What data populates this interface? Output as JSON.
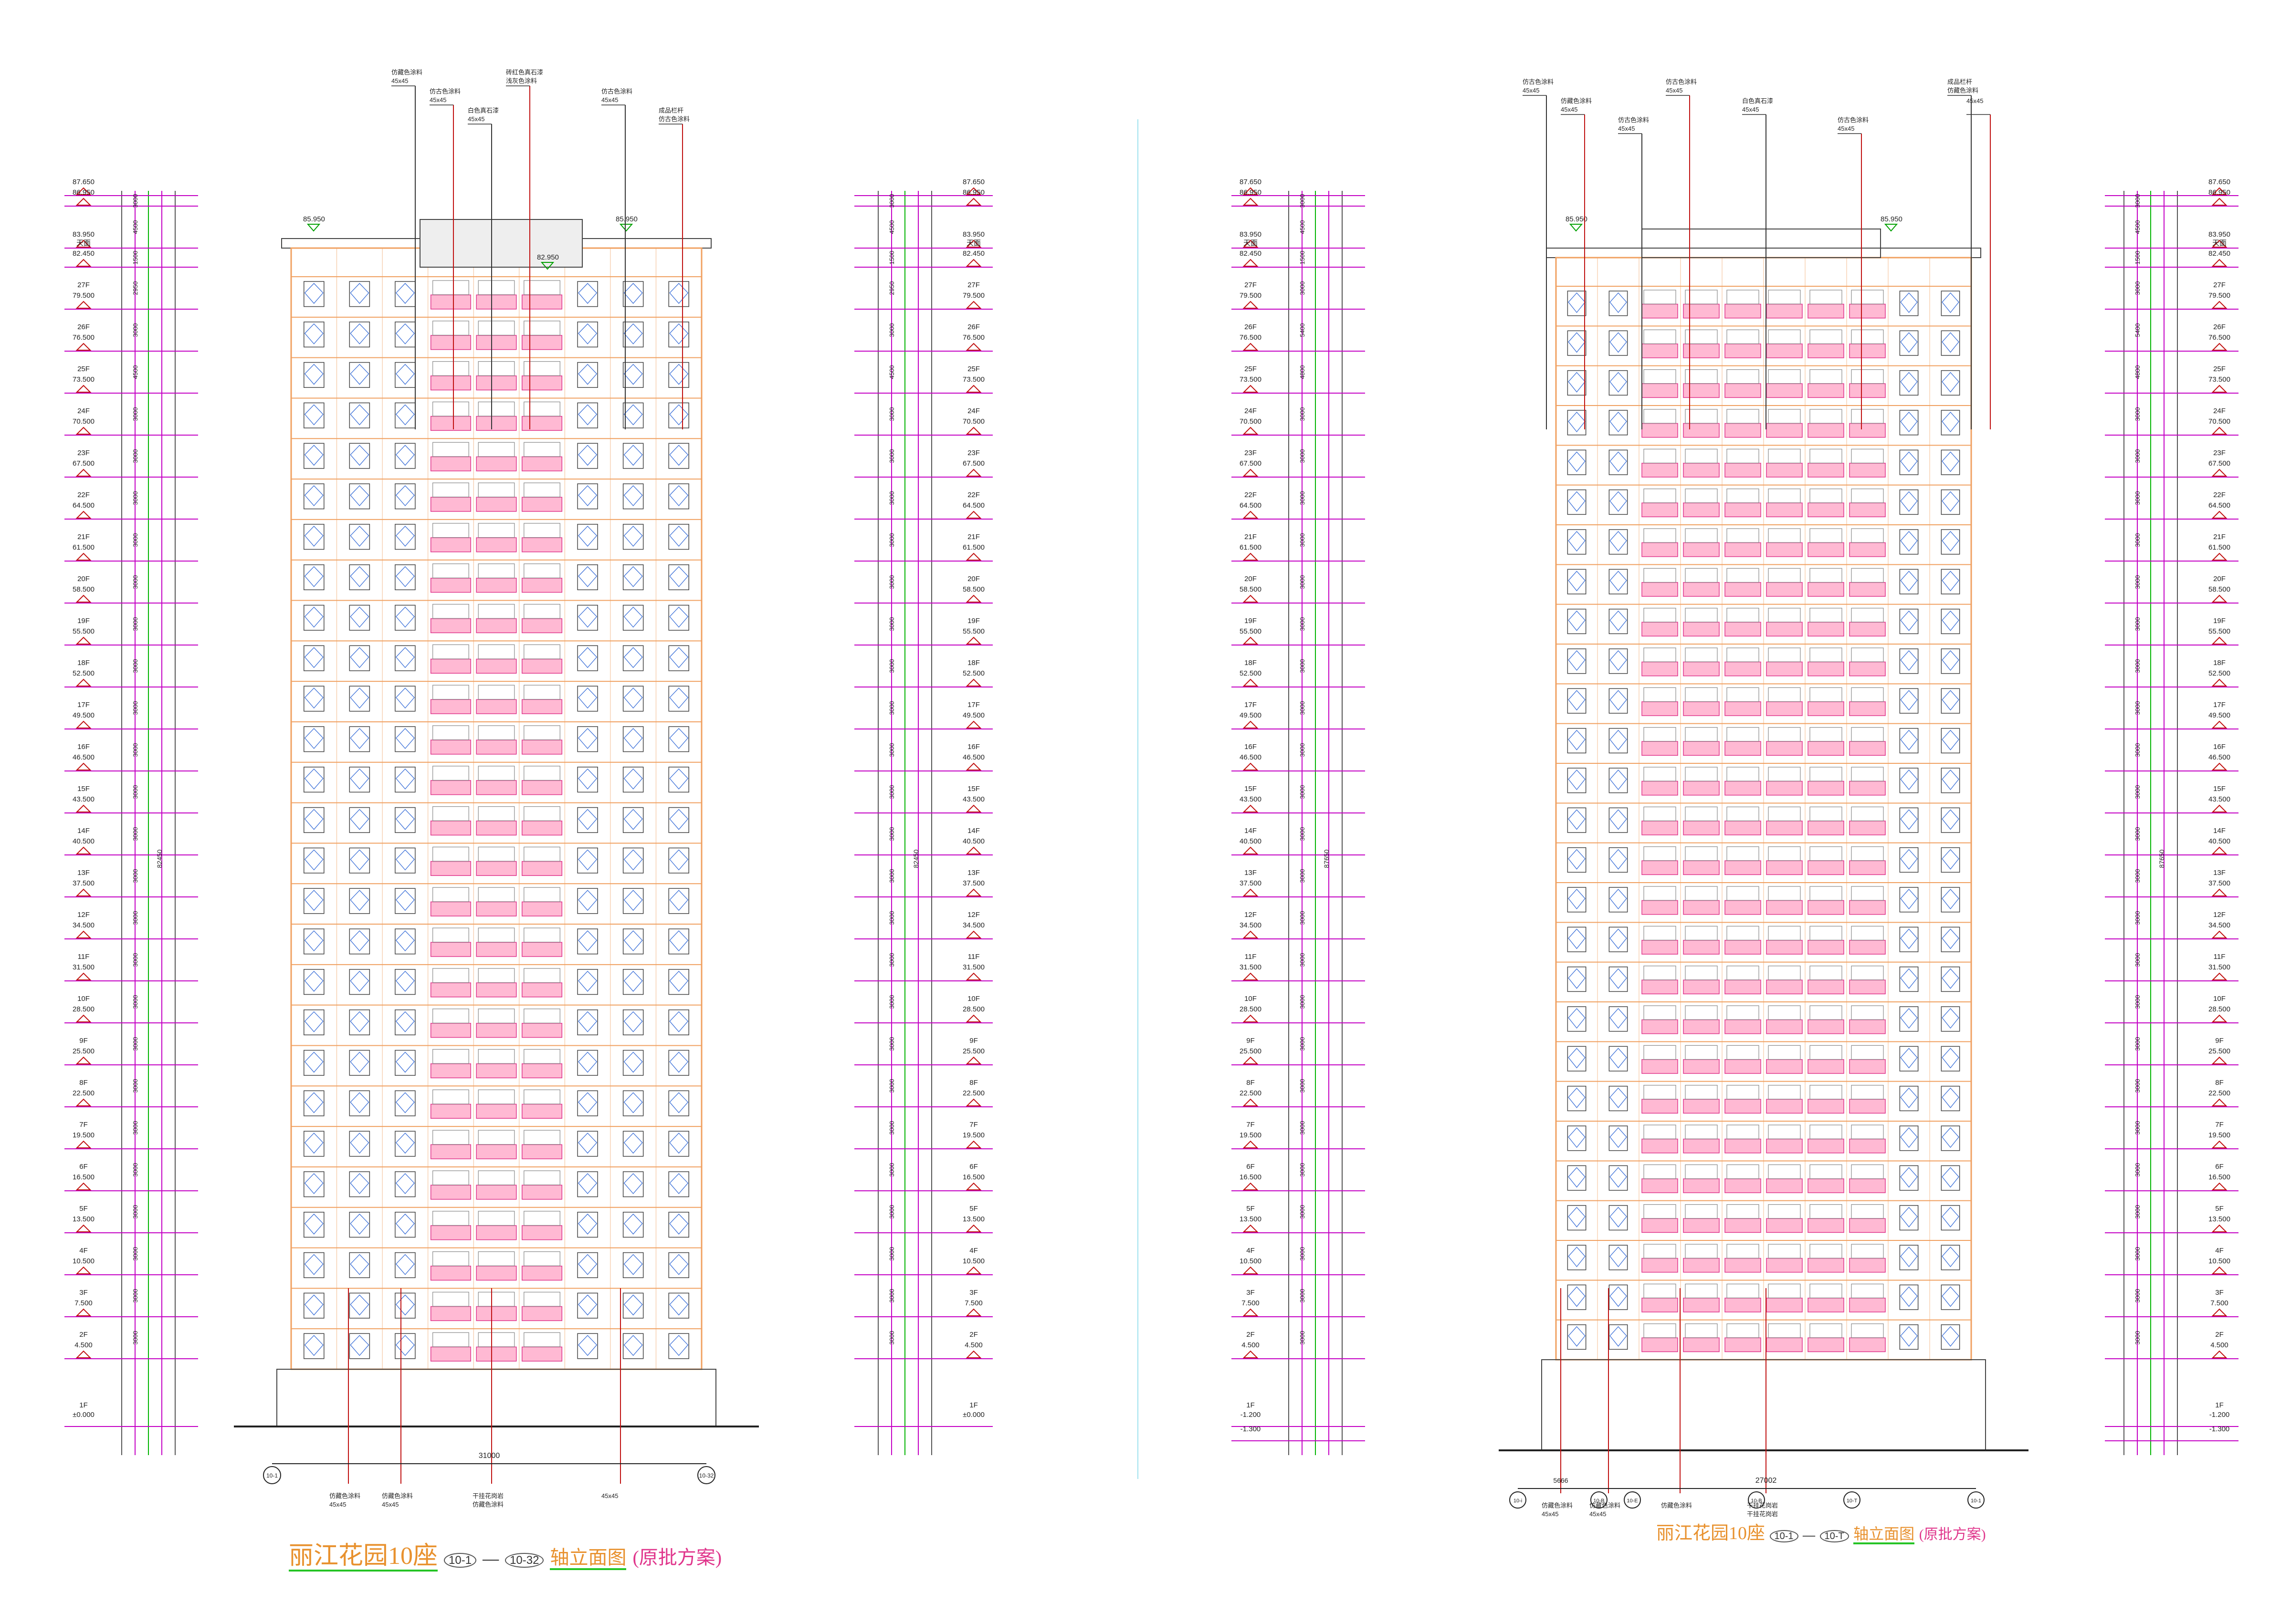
{
  "levels": [
    {
      "floor": "",
      "elev": "87.650"
    },
    {
      "floor": "",
      "elev": "86.950"
    },
    {
      "floor": "",
      "elev": "83.950"
    },
    {
      "floor": "天面",
      "elev": "82.450"
    },
    {
      "floor": "27F",
      "elev": "79.500"
    },
    {
      "floor": "26F",
      "elev": "76.500"
    },
    {
      "floor": "25F",
      "elev": "73.500"
    },
    {
      "floor": "24F",
      "elev": "70.500"
    },
    {
      "floor": "23F",
      "elev": "67.500"
    },
    {
      "floor": "22F",
      "elev": "64.500"
    },
    {
      "floor": "21F",
      "elev": "61.500"
    },
    {
      "floor": "20F",
      "elev": "58.500"
    },
    {
      "floor": "19F",
      "elev": "55.500"
    },
    {
      "floor": "18F",
      "elev": "52.500"
    },
    {
      "floor": "17F",
      "elev": "49.500"
    },
    {
      "floor": "16F",
      "elev": "46.500"
    },
    {
      "floor": "15F",
      "elev": "43.500"
    },
    {
      "floor": "14F",
      "elev": "40.500"
    },
    {
      "floor": "13F",
      "elev": "37.500"
    },
    {
      "floor": "12F",
      "elev": "34.500"
    },
    {
      "floor": "11F",
      "elev": "31.500"
    },
    {
      "floor": "10F",
      "elev": "28.500"
    },
    {
      "floor": "9F",
      "elev": "25.500"
    },
    {
      "floor": "8F",
      "elev": "22.500"
    },
    {
      "floor": "7F",
      "elev": "19.500"
    },
    {
      "floor": "6F",
      "elev": "16.500"
    },
    {
      "floor": "5F",
      "elev": "13.500"
    },
    {
      "floor": "4F",
      "elev": "10.500"
    },
    {
      "floor": "3F",
      "elev": "7.500"
    },
    {
      "floor": "2F",
      "elev": "4.500"
    }
  ],
  "left_elevation": {
    "ground": {
      "floor": "1F",
      "elev": "±0.000"
    },
    "roof_marks": [
      "85.950",
      "85.950",
      "82.950"
    ],
    "width_dim": "31000",
    "axis_left": "10-1",
    "axis_right": "10-32",
    "dims": [
      "700",
      "3000",
      "4500",
      "1500",
      "2950",
      "3000",
      "4500"
    ],
    "total_dim": "82450",
    "callouts_top": [
      "仿藏色涂料",
      "45x45",
      "仿古色涂料",
      "45x45",
      "白色真石漆",
      "45x45",
      "砖红色真石漆",
      "浅灰色涂料",
      "仿古色涂料",
      "45x45",
      "成品栏杆",
      "仿古色涂料"
    ],
    "callouts_bottom": [
      "仿藏色涂料",
      "45x45",
      "仿藏色涂料",
      "45x45",
      "干挂花岗岩",
      "仿藏色涂料",
      "45x45"
    ],
    "title_main": "丽江花园10座",
    "title_axis_a": "10-1",
    "title_axis_b": "10-32",
    "title_suffix": "轴立面图",
    "title_note": "(原批方案)"
  },
  "right_elevation": {
    "ground": [
      {
        "floor": "1F",
        "elev": "-1.200"
      },
      {
        "floor": "",
        "elev": "-1.300"
      }
    ],
    "roof_marks": [
      "85.950",
      "85.950"
    ],
    "width_dim": "27002",
    "width_dim_left": "5666",
    "axis_labels": [
      "10-i",
      "10-B",
      "10-E",
      "10-B",
      "10-T",
      "10-1"
    ],
    "dims": [
      "700",
      "3000",
      "4500",
      "1500",
      "3000",
      "5400",
      "4800"
    ],
    "total_dim": "87650",
    "callouts_top": [
      "仿古色涂料",
      "45x45",
      "仿藏色涂料",
      "45x45",
      "仿古色涂料",
      "45x45",
      "仿古色涂料",
      "45x45",
      "白色真石漆",
      "45x45",
      "仿古色涂料",
      "45x45",
      "成品栏杆",
      "仿藏色涂料",
      "45x45"
    ],
    "callouts_bottom": [
      "仿藏色涂料",
      "45x45",
      "仿藏色涂料",
      "45x45",
      "干挂花岗岩",
      "干挂花岗岩"
    ],
    "title_main": "丽江花园10座",
    "title_axis_a": "10-1",
    "title_axis_b": "10-T",
    "title_suffix": "轴立面图",
    "title_note": "(原批方案)"
  },
  "colors": {
    "level_line": "#c400c4",
    "dim_line": "#00b400",
    "facade": "#f0a060",
    "balcony": "#ff7fae",
    "window": "#3a6fd8",
    "outline": "#444444",
    "leader": "#333333",
    "red_leader": "#c01010"
  }
}
